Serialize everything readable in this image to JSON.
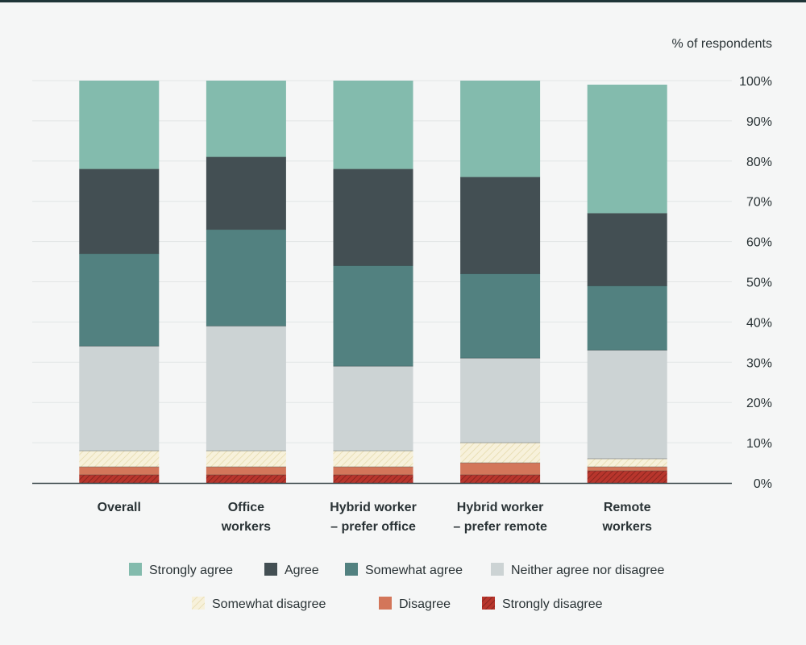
{
  "chart_data": {
    "type": "bar",
    "stacked": true,
    "ylabel": "% of respondents",
    "ylim": [
      0,
      100
    ],
    "y_ticks": [
      "0%",
      "10%",
      "20%",
      "30%",
      "40%",
      "50%",
      "60%",
      "70%",
      "80%",
      "90%",
      "100%"
    ],
    "grid": true,
    "legend_position": "bottom",
    "categories": [
      [
        "Overall"
      ],
      [
        "Office",
        "workers"
      ],
      [
        "Hybrid worker",
        "– prefer office"
      ],
      [
        "Hybrid worker",
        "– prefer remote"
      ],
      [
        "Remote",
        "workers"
      ]
    ],
    "series": [
      {
        "name": "Strongly disagree",
        "color": "#b8352c",
        "pattern": "hatch-dark",
        "values": [
          2,
          2,
          2,
          2,
          3
        ]
      },
      {
        "name": "Disagree",
        "color": "#d3765a",
        "pattern": "solid",
        "values": [
          2,
          2,
          2,
          3,
          1
        ]
      },
      {
        "name": "Somewhat disagree",
        "color": "#f5eed2",
        "pattern": "hatch-light",
        "values": [
          4,
          4,
          4,
          5,
          2
        ]
      },
      {
        "name": "Neither agree nor disagree",
        "color": "#ccd3d4",
        "pattern": "solid",
        "values": [
          26,
          31,
          21,
          21,
          27
        ]
      },
      {
        "name": "Somewhat agree",
        "color": "#528180",
        "pattern": "solid",
        "values": [
          23,
          24,
          25,
          21,
          16
        ]
      },
      {
        "name": "Agree",
        "color": "#434f53",
        "pattern": "solid",
        "values": [
          21,
          18,
          24,
          24,
          18
        ]
      },
      {
        "name": "Strongly agree",
        "color": "#83bbad",
        "pattern": "solid",
        "values": [
          22,
          19,
          22,
          24,
          32
        ]
      }
    ],
    "legend_rows": [
      [
        "Strongly agree",
        "Agree",
        "Somewhat agree",
        "Neither agree nor disagree"
      ],
      [
        "Somewhat disagree",
        "Disagree",
        "Strongly disagree"
      ]
    ]
  }
}
